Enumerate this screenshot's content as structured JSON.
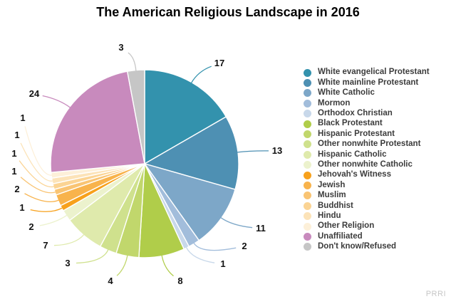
{
  "title": "The American Religious Landscape in 2016",
  "watermark": "PRRI",
  "chart_data": {
    "type": "pie",
    "title": "The American Religious Landscape in 2016",
    "legend_position": "right",
    "start_angle_deg": 0,
    "direction": "clockwise",
    "value_labels_shown": true,
    "slices": [
      {
        "label": "White evangelical Protestant",
        "value": 17,
        "color": "#3392ad"
      },
      {
        "label": "White mainline Protestant",
        "value": 13,
        "color": "#4e90b3"
      },
      {
        "label": "White Catholic",
        "value": 11,
        "color": "#7da7c8"
      },
      {
        "label": "Mormon",
        "value": 2,
        "color": "#a2bddb"
      },
      {
        "label": "Orthodox Christian",
        "value": 1,
        "color": "#c8d8ea"
      },
      {
        "label": "Black Protestant",
        "value": 8,
        "color": "#b0cd4a"
      },
      {
        "label": "Hispanic Protestant",
        "value": 4,
        "color": "#c1d76c"
      },
      {
        "label": "Other nonwhite Protestant",
        "value": 3,
        "color": "#cfe18d"
      },
      {
        "label": "Hispanic Catholic",
        "value": 7,
        "color": "#dfeaac"
      },
      {
        "label": "Other nonwhite Catholic",
        "value": 2,
        "color": "#ecf2cd"
      },
      {
        "label": "Jehovah's Witness",
        "value": 1,
        "color": "#f7a11c"
      },
      {
        "label": "Jewish",
        "value": 2,
        "color": "#f8b34c"
      },
      {
        "label": "Muslim",
        "value": 1,
        "color": "#f9c473"
      },
      {
        "label": "Buddhist",
        "value": 1,
        "color": "#fbd494"
      },
      {
        "label": "Hindu",
        "value": 1,
        "color": "#fce3b8"
      },
      {
        "label": "Other Religion",
        "value": 1,
        "color": "#fdf0d9"
      },
      {
        "label": "Unaffiliated",
        "value": 24,
        "color": "#c88abd"
      },
      {
        "label": "Don't know/Refused",
        "value": 3,
        "color": "#c6c6c6"
      }
    ]
  }
}
